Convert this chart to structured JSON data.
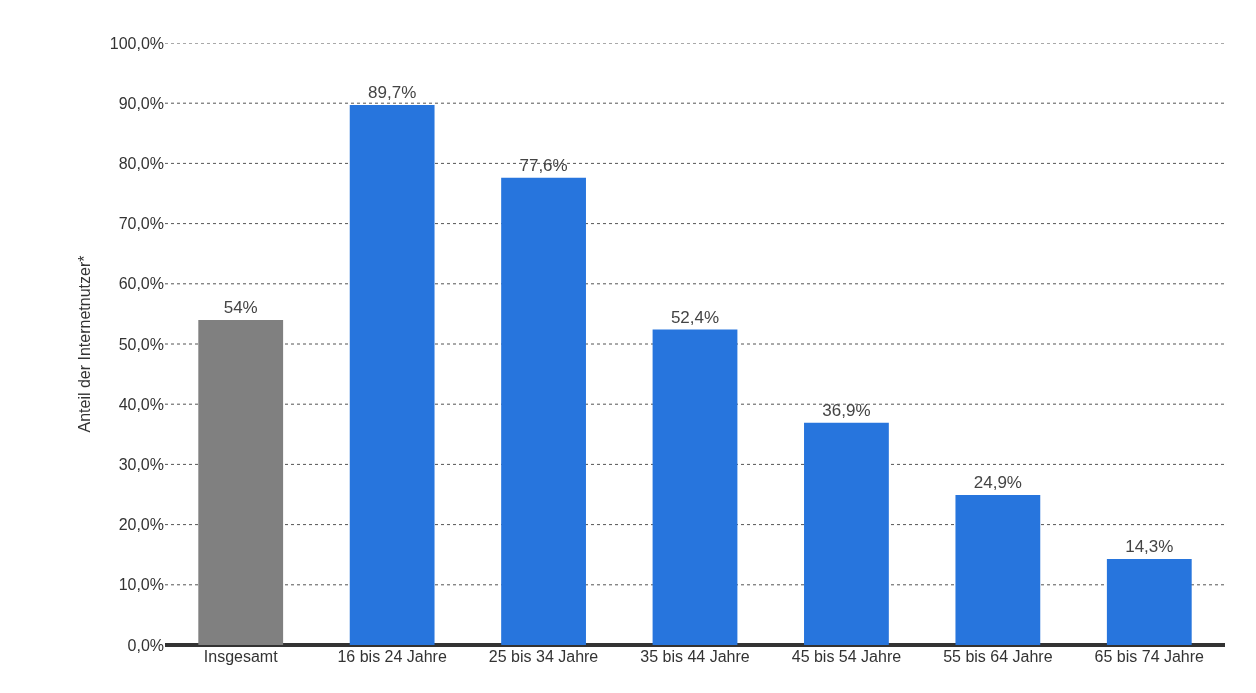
{
  "chart_data": {
    "type": "bar",
    "ylabel": "Anteil der Internetnutzer*",
    "categories": [
      "Insgesamt",
      "16 bis 24 Jahre",
      "25 bis 34 Jahre",
      "35 bis 44 Jahre",
      "45 bis 54 Jahre",
      "55 bis 64 Jahre",
      "65 bis 74 Jahre"
    ],
    "values": [
      54,
      89.7,
      77.6,
      52.4,
      36.9,
      24.9,
      14.3
    ],
    "value_labels": [
      "54%",
      "89,7%",
      "77,6%",
      "52,4%",
      "36,9%",
      "24,9%",
      "14,3%"
    ],
    "colors": [
      "#808080",
      "#2775dd",
      "#2775dd",
      "#2775dd",
      "#2775dd",
      "#2775dd",
      "#2775dd"
    ],
    "ylim": [
      0,
      100
    ],
    "yticks": [
      {
        "value": 0,
        "label": "0,0%"
      },
      {
        "value": 10,
        "label": "10,0%"
      },
      {
        "value": 20,
        "label": "20,0%"
      },
      {
        "value": 30,
        "label": "30,0%"
      },
      {
        "value": 40,
        "label": "40,0%"
      },
      {
        "value": 50,
        "label": "50,0%"
      },
      {
        "value": 60,
        "label": "60,0%"
      },
      {
        "value": 70,
        "label": "70,0%"
      },
      {
        "value": 80,
        "label": "80,0%"
      },
      {
        "value": 90,
        "label": "90,0%"
      },
      {
        "value": 100,
        "label": "100,0%"
      }
    ],
    "grid": "y",
    "line_style": "dotted"
  }
}
